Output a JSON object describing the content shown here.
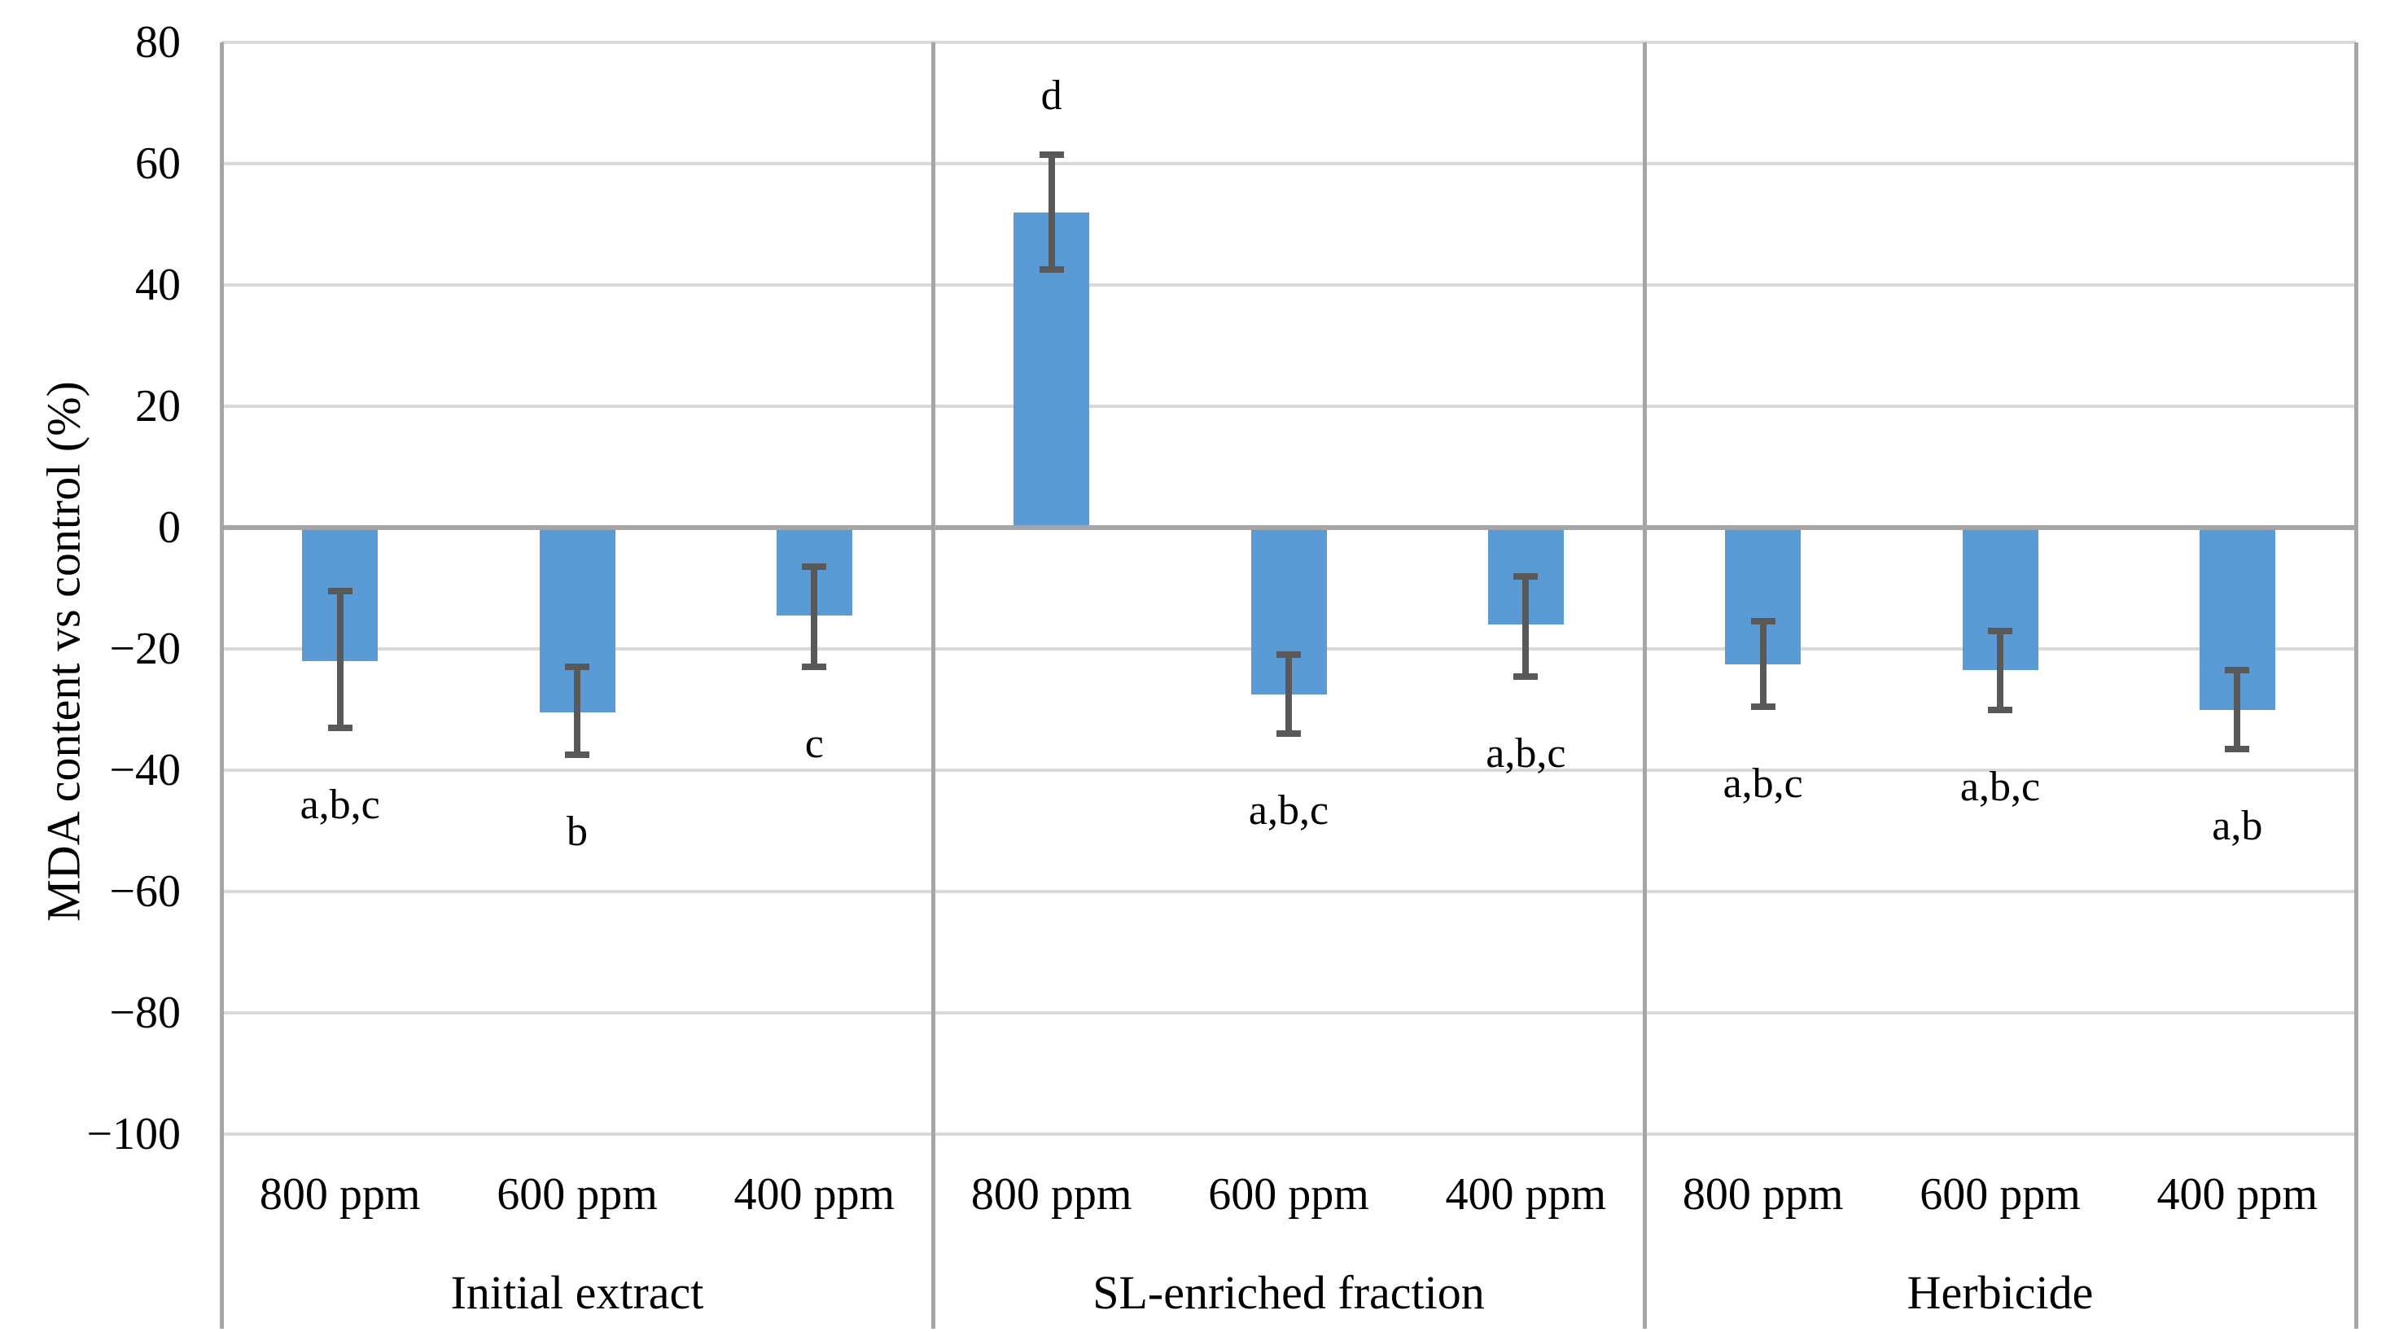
{
  "chart_data": {
    "type": "bar",
    "title": "",
    "ylabel": "MDA content vs control (%)",
    "xlabel": "",
    "ylim": [
      -100,
      80
    ],
    "grid": true,
    "legend": "none",
    "bar_color": "#5B9BD5",
    "error_bar_color": "#595959",
    "gridline_color": "#D9D9D9",
    "axis_line_color": "#A6A6A6",
    "y_ticks": [
      {
        "label": "80",
        "value": 80
      },
      {
        "label": "60",
        "value": 60
      },
      {
        "label": "40",
        "value": 40
      },
      {
        "label": "20",
        "value": 20
      },
      {
        "label": "0",
        "value": 0
      },
      {
        "label": "−20",
        "value": -20
      },
      {
        "label": "−40",
        "value": -40
      },
      {
        "label": "−60",
        "value": -60
      },
      {
        "label": "−80",
        "value": -80
      },
      {
        "label": "−100",
        "value": -100
      }
    ],
    "groups": [
      {
        "label": "Initial extract",
        "bars": [
          {
            "category": "800 ppm",
            "value": -22,
            "error_low": -33,
            "error_high": -10.5,
            "sig_label": "a,b,c"
          },
          {
            "category": "600 ppm",
            "value": -30.5,
            "error_low": -37.5,
            "error_high": -23,
            "sig_label": "b"
          },
          {
            "category": "400 ppm",
            "value": -14.5,
            "error_low": -23,
            "error_high": -6.5,
            "sig_label": "c"
          }
        ]
      },
      {
        "label": "SL-enriched fraction",
        "bars": [
          {
            "category": "800 ppm",
            "value": 52,
            "error_low": 42.5,
            "error_high": 61.5,
            "sig_label": "d"
          },
          {
            "category": "600 ppm",
            "value": -27.5,
            "error_low": -34,
            "error_high": -21,
            "sig_label": "a,b,c"
          },
          {
            "category": "400 ppm",
            "value": -16,
            "error_low": -24.5,
            "error_high": -8,
            "sig_label": "a,b,c"
          }
        ]
      },
      {
        "label": "Herbicide",
        "bars": [
          {
            "category": "800 ppm",
            "value": -22.5,
            "error_low": -29.5,
            "error_high": -15.5,
            "sig_label": "a,b,c"
          },
          {
            "category": "600 ppm",
            "value": -23.5,
            "error_low": -30,
            "error_high": -17,
            "sig_label": "a,b,c"
          },
          {
            "category": "400 ppm",
            "value": -30,
            "error_low": -36.5,
            "error_high": -23.5,
            "sig_label": "a,b"
          }
        ]
      }
    ]
  }
}
